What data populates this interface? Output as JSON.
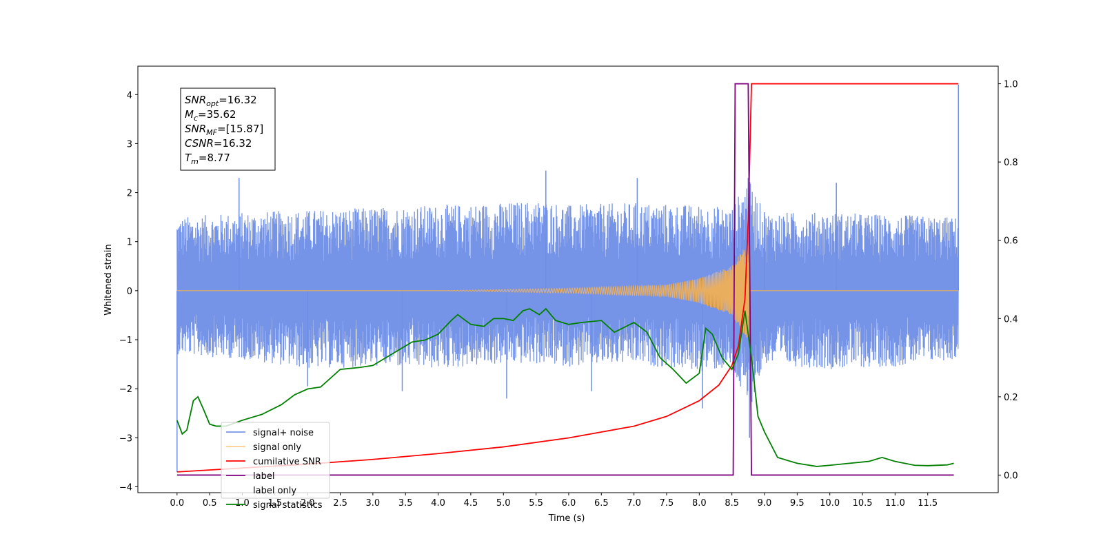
{
  "chart_data": {
    "type": "line",
    "title": "",
    "xlabel": "Time (s)",
    "ylabel_left": "Whitened strain",
    "ylabel_right": "",
    "xlim": [
      -0.6,
      12.58
    ],
    "ylim_left": [
      -4.12,
      4.58
    ],
    "ylim_right": [
      -0.045,
      1.045
    ],
    "x_ticks": [
      0.0,
      0.5,
      1.0,
      1.5,
      2.0,
      2.5,
      3.0,
      3.5,
      4.0,
      4.5,
      5.0,
      5.5,
      6.0,
      6.5,
      7.0,
      7.5,
      8.0,
      8.5,
      9.0,
      9.5,
      10.0,
      10.5,
      11.0,
      11.5
    ],
    "x_tick_labels": [
      "0.0",
      "0.5",
      "1.0",
      "1.5",
      "2.0",
      "2.5",
      "3.0",
      "3.5",
      "4.0",
      "4.5",
      "5.0",
      "5.5",
      "6.0",
      "6.5",
      "7.0",
      "7.5",
      "8.0",
      "8.5",
      "9.0",
      "9.5",
      "10.0",
      "10.5",
      "11.0",
      "11.5"
    ],
    "y_left_ticks": [
      -4,
      -3,
      -2,
      -1,
      0,
      1,
      2,
      3,
      4
    ],
    "y_left_tick_labels": [
      "−4",
      "−3",
      "−2",
      "−1",
      "0",
      "1",
      "2",
      "3",
      "4"
    ],
    "y_right_ticks": [
      0.0,
      0.2,
      0.4,
      0.6,
      0.8,
      1.0
    ],
    "y_right_tick_labels": [
      "0.0",
      "0.2",
      "0.4",
      "0.6",
      "0.8",
      "1.0"
    ],
    "grid": false,
    "legend_placement": "lower-left",
    "info_box": {
      "lines": [
        {
          "sym": "SNR",
          "sub": "opt",
          "val": "=16.32"
        },
        {
          "sym": "M",
          "sub": "c",
          "val": "=35.62"
        },
        {
          "sym": "SNR",
          "sub": "MF",
          "val": "=[15.87]"
        },
        {
          "sym": "CSNR",
          "sub": "",
          "val": "=16.32"
        },
        {
          "sym": "T",
          "sub": "m",
          "val": "=8.77"
        }
      ]
    },
    "series": [
      {
        "name": "signal+ noise",
        "color": "#6f8ee6",
        "axis": "left",
        "envelope": {
          "x": [
            0.0,
            1.0,
            2.0,
            3.0,
            4.0,
            5.0,
            5.6,
            6.0,
            7.0,
            8.0,
            8.5,
            8.75,
            9.0,
            10.0,
            11.0,
            11.97
          ],
          "upper": [
            1.5,
            1.6,
            1.65,
            1.7,
            1.75,
            1.8,
            1.85,
            1.75,
            1.8,
            1.75,
            1.7,
            2.3,
            1.6,
            1.6,
            1.55,
            1.5
          ],
          "lower": [
            -1.3,
            -1.4,
            -1.6,
            -1.55,
            -1.6,
            -1.5,
            -1.5,
            -1.55,
            -1.5,
            -1.65,
            -1.6,
            -2.5,
            -1.5,
            -1.6,
            -1.55,
            -1.4
          ]
        },
        "spikes": [
          {
            "x": 0.0,
            "y": -3.7
          },
          {
            "x": 0.95,
            "y": 2.3
          },
          {
            "x": 2.0,
            "y": -1.95
          },
          {
            "x": 3.45,
            "y": -2.05
          },
          {
            "x": 5.05,
            "y": -2.2
          },
          {
            "x": 5.65,
            "y": 2.45
          },
          {
            "x": 6.35,
            "y": -2.05
          },
          {
            "x": 7.05,
            "y": 2.3
          },
          {
            "x": 8.05,
            "y": -2.4
          },
          {
            "x": 8.75,
            "y": 2.3
          },
          {
            "x": 8.77,
            "y": -3.0
          },
          {
            "x": 9.0,
            "y": 1.6
          },
          {
            "x": 10.1,
            "y": 2.2
          },
          {
            "x": 11.97,
            "y": 4.2
          }
        ]
      },
      {
        "name": "signal only",
        "color": "#ffb347",
        "axis": "left",
        "chirp_peak_time": 8.77,
        "chirp_peak_amplitude": 1.05,
        "chirp_points": [
          {
            "x": 0.0,
            "y": 0.0
          },
          {
            "x": 4.0,
            "y": 0.0
          },
          {
            "x": 6.0,
            "y": 0.05
          },
          {
            "x": 7.5,
            "y": 0.12
          },
          {
            "x": 8.0,
            "y": 0.25
          },
          {
            "x": 8.5,
            "y": 0.5
          },
          {
            "x": 8.77,
            "y": 1.05
          },
          {
            "x": 8.8,
            "y": 0.0
          },
          {
            "x": 11.97,
            "y": 0.0
          }
        ]
      },
      {
        "name": "cumilative SNR",
        "color": "#ff0000",
        "axis": "right",
        "points": [
          {
            "x": 0.0,
            "y": 0.008
          },
          {
            "x": 1.0,
            "y": 0.018
          },
          {
            "x": 2.0,
            "y": 0.028
          },
          {
            "x": 3.0,
            "y": 0.04
          },
          {
            "x": 4.0,
            "y": 0.055
          },
          {
            "x": 5.0,
            "y": 0.072
          },
          {
            "x": 6.0,
            "y": 0.095
          },
          {
            "x": 7.0,
            "y": 0.125
          },
          {
            "x": 7.5,
            "y": 0.15
          },
          {
            "x": 8.0,
            "y": 0.19
          },
          {
            "x": 8.3,
            "y": 0.23
          },
          {
            "x": 8.5,
            "y": 0.28
          },
          {
            "x": 8.6,
            "y": 0.33
          },
          {
            "x": 8.7,
            "y": 0.45
          },
          {
            "x": 8.75,
            "y": 0.65
          },
          {
            "x": 8.8,
            "y": 1.0
          },
          {
            "x": 11.97,
            "y": 1.0
          }
        ]
      },
      {
        "name": "label",
        "color": "#800080",
        "axis": "right",
        "points": [
          {
            "x": 0.0,
            "y": 0.0
          },
          {
            "x": 8.52,
            "y": 0.0
          },
          {
            "x": 8.55,
            "y": 1.0
          },
          {
            "x": 8.75,
            "y": 1.0
          },
          {
            "x": 8.8,
            "y": 0.0
          },
          {
            "x": 11.9,
            "y": 0.0
          }
        ]
      },
      {
        "name": "label only",
        "color": "#800080",
        "axis": "right",
        "points": []
      },
      {
        "name": "signal statistics",
        "color": "#008000",
        "axis": "right",
        "points": [
          {
            "x": 0.0,
            "y": 0.14
          },
          {
            "x": 0.08,
            "y": 0.105
          },
          {
            "x": 0.15,
            "y": 0.115
          },
          {
            "x": 0.25,
            "y": 0.19
          },
          {
            "x": 0.32,
            "y": 0.2
          },
          {
            "x": 0.4,
            "y": 0.17
          },
          {
            "x": 0.5,
            "y": 0.13
          },
          {
            "x": 0.6,
            "y": 0.125
          },
          {
            "x": 0.75,
            "y": 0.125
          },
          {
            "x": 1.0,
            "y": 0.14
          },
          {
            "x": 1.3,
            "y": 0.155
          },
          {
            "x": 1.6,
            "y": 0.18
          },
          {
            "x": 1.8,
            "y": 0.205
          },
          {
            "x": 2.0,
            "y": 0.22
          },
          {
            "x": 2.2,
            "y": 0.225
          },
          {
            "x": 2.5,
            "y": 0.27
          },
          {
            "x": 2.8,
            "y": 0.275
          },
          {
            "x": 3.0,
            "y": 0.28
          },
          {
            "x": 3.3,
            "y": 0.31
          },
          {
            "x": 3.6,
            "y": 0.34
          },
          {
            "x": 3.8,
            "y": 0.345
          },
          {
            "x": 4.0,
            "y": 0.36
          },
          {
            "x": 4.2,
            "y": 0.395
          },
          {
            "x": 4.3,
            "y": 0.41
          },
          {
            "x": 4.5,
            "y": 0.385
          },
          {
            "x": 4.7,
            "y": 0.38
          },
          {
            "x": 4.85,
            "y": 0.4
          },
          {
            "x": 5.0,
            "y": 0.4
          },
          {
            "x": 5.15,
            "y": 0.395
          },
          {
            "x": 5.3,
            "y": 0.42
          },
          {
            "x": 5.4,
            "y": 0.425
          },
          {
            "x": 5.55,
            "y": 0.41
          },
          {
            "x": 5.65,
            "y": 0.425
          },
          {
            "x": 5.8,
            "y": 0.395
          },
          {
            "x": 6.0,
            "y": 0.385
          },
          {
            "x": 6.2,
            "y": 0.39
          },
          {
            "x": 6.5,
            "y": 0.395
          },
          {
            "x": 6.7,
            "y": 0.365
          },
          {
            "x": 7.0,
            "y": 0.39
          },
          {
            "x": 7.2,
            "y": 0.365
          },
          {
            "x": 7.4,
            "y": 0.3
          },
          {
            "x": 7.6,
            "y": 0.27
          },
          {
            "x": 7.8,
            "y": 0.235
          },
          {
            "x": 8.0,
            "y": 0.26
          },
          {
            "x": 8.1,
            "y": 0.375
          },
          {
            "x": 8.2,
            "y": 0.36
          },
          {
            "x": 8.35,
            "y": 0.3
          },
          {
            "x": 8.5,
            "y": 0.27
          },
          {
            "x": 8.6,
            "y": 0.31
          },
          {
            "x": 8.7,
            "y": 0.42
          },
          {
            "x": 8.8,
            "y": 0.3
          },
          {
            "x": 8.9,
            "y": 0.15
          },
          {
            "x": 9.0,
            "y": 0.11
          },
          {
            "x": 9.2,
            "y": 0.045
          },
          {
            "x": 9.5,
            "y": 0.03
          },
          {
            "x": 9.8,
            "y": 0.022
          },
          {
            "x": 10.0,
            "y": 0.025
          },
          {
            "x": 10.3,
            "y": 0.03
          },
          {
            "x": 10.6,
            "y": 0.035
          },
          {
            "x": 10.8,
            "y": 0.045
          },
          {
            "x": 11.0,
            "y": 0.035
          },
          {
            "x": 11.3,
            "y": 0.025
          },
          {
            "x": 11.5,
            "y": 0.024
          },
          {
            "x": 11.8,
            "y": 0.026
          },
          {
            "x": 11.9,
            "y": 0.03
          }
        ]
      }
    ]
  }
}
